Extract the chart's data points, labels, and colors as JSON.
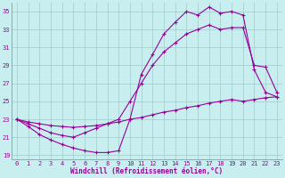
{
  "xlabel": "Windchill (Refroidissement éolien,°C)",
  "bg_color": "#c8eef0",
  "line_color": "#990099",
  "grid_color": "#a0cccc",
  "xlim": [
    -0.5,
    23.5
  ],
  "ylim": [
    18.5,
    36
  ],
  "yticks": [
    19,
    21,
    23,
    25,
    27,
    29,
    31,
    33,
    35
  ],
  "xticks": [
    0,
    1,
    2,
    3,
    4,
    5,
    6,
    7,
    8,
    9,
    10,
    11,
    12,
    13,
    14,
    15,
    16,
    17,
    18,
    19,
    20,
    21,
    22,
    23
  ],
  "curve1_x": [
    0,
    1,
    2,
    3,
    4,
    5,
    6,
    7,
    8,
    9,
    10,
    11,
    12,
    13,
    14,
    15,
    16,
    17,
    18,
    19,
    20,
    21,
    22,
    23
  ],
  "curve1_y": [
    23.0,
    22.2,
    21.3,
    20.7,
    20.2,
    19.8,
    19.5,
    19.3,
    19.3,
    19.5,
    23.0,
    28.0,
    30.2,
    32.5,
    33.8,
    35.0,
    34.6,
    35.5,
    34.8,
    35.0,
    34.6,
    28.5,
    26.0,
    25.5
  ],
  "curve2_x": [
    0,
    1,
    2,
    3,
    4,
    5,
    6,
    7,
    8,
    9,
    10,
    11,
    12,
    13,
    14,
    15,
    16,
    17,
    18,
    19,
    20,
    21,
    22,
    23
  ],
  "curve2_y": [
    23.0,
    22.5,
    22.0,
    21.5,
    21.2,
    21.0,
    21.5,
    22.0,
    22.5,
    23.0,
    25.0,
    27.0,
    29.0,
    30.5,
    31.5,
    32.5,
    33.0,
    33.5,
    33.0,
    33.2,
    33.2,
    29.0,
    28.8,
    26.0
  ],
  "curve3_x": [
    0,
    1,
    2,
    3,
    4,
    5,
    6,
    7,
    8,
    9,
    10,
    11,
    12,
    13,
    14,
    15,
    16,
    17,
    18,
    19,
    20,
    21,
    22,
    23
  ],
  "curve3_y": [
    23.0,
    22.7,
    22.5,
    22.3,
    22.2,
    22.1,
    22.2,
    22.3,
    22.5,
    22.7,
    23.0,
    23.2,
    23.5,
    23.8,
    24.0,
    24.3,
    24.5,
    24.8,
    25.0,
    25.2,
    25.0,
    25.2,
    25.4,
    25.5
  ]
}
